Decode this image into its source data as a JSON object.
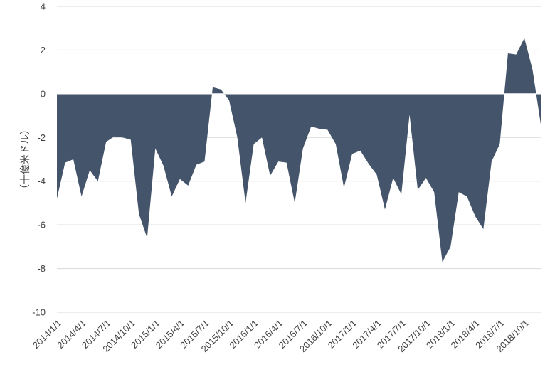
{
  "chart_data": {
    "type": "area",
    "ylabel": "（十億米ドル）",
    "ylim": [
      -10,
      4
    ],
    "yticks": [
      4,
      2,
      0,
      -2,
      -4,
      -6,
      -8,
      -10
    ],
    "grid": true,
    "legend": "none",
    "x_tick_labels": [
      "2014/1/1",
      "2014/4/1",
      "2014/7/1",
      "2014/10/1",
      "2015/1/1",
      "2015/4/1",
      "2015/7/1",
      "2015/10/1",
      "2016/1/1",
      "2016/4/1",
      "2016/7/1",
      "2016/10/1",
      "2017/1/1",
      "2017/4/1",
      "2017/7/1",
      "2017/10/1",
      "2018/1/1",
      "2018/4/1",
      "2018/7/1",
      "2018/10/1"
    ],
    "x": [
      "2014/1",
      "2014/2",
      "2014/3",
      "2014/4",
      "2014/5",
      "2014/6",
      "2014/7",
      "2014/8",
      "2014/9",
      "2014/10",
      "2014/11",
      "2014/12",
      "2015/1",
      "2015/2",
      "2015/3",
      "2015/4",
      "2015/5",
      "2015/6",
      "2015/7",
      "2015/8",
      "2015/9",
      "2015/10",
      "2015/11",
      "2015/12",
      "2016/1",
      "2016/2",
      "2016/3",
      "2016/4",
      "2016/5",
      "2016/6",
      "2016/7",
      "2016/8",
      "2016/9",
      "2016/10",
      "2016/11",
      "2016/12",
      "2017/1",
      "2017/2",
      "2017/3",
      "2017/4",
      "2017/5",
      "2017/6",
      "2017/7",
      "2017/8",
      "2017/9",
      "2017/10",
      "2017/11",
      "2017/12",
      "2018/1",
      "2018/2",
      "2018/3",
      "2018/4",
      "2018/5",
      "2018/6",
      "2018/7",
      "2018/8",
      "2018/9",
      "2018/10",
      "2018/11",
      "2018/12"
    ],
    "values": [
      -4.8,
      -3.15,
      -3.0,
      -4.7,
      -3.5,
      -4.0,
      -2.2,
      -1.95,
      -2.0,
      -2.1,
      -5.5,
      -6.6,
      -2.5,
      -3.3,
      -4.7,
      -3.9,
      -4.2,
      -3.25,
      -3.1,
      0.3,
      0.2,
      -0.3,
      -2.0,
      -5.0,
      -2.3,
      -2.0,
      -3.75,
      -3.1,
      -3.15,
      -5.0,
      -2.5,
      -1.5,
      -1.6,
      -1.65,
      -2.3,
      -4.3,
      -2.75,
      -2.6,
      -3.2,
      -3.7,
      -5.3,
      -3.85,
      -4.6,
      -0.95,
      -4.4,
      -3.85,
      -4.5,
      -7.7,
      -7.0,
      -4.5,
      -4.7,
      -5.6,
      -6.2,
      -3.1,
      -2.3,
      1.85,
      1.8,
      2.55,
      1.1,
      -1.4
    ],
    "colors": {
      "area": "#44546a",
      "grid": "#d9d9d9",
      "text": "#404040"
    }
  }
}
